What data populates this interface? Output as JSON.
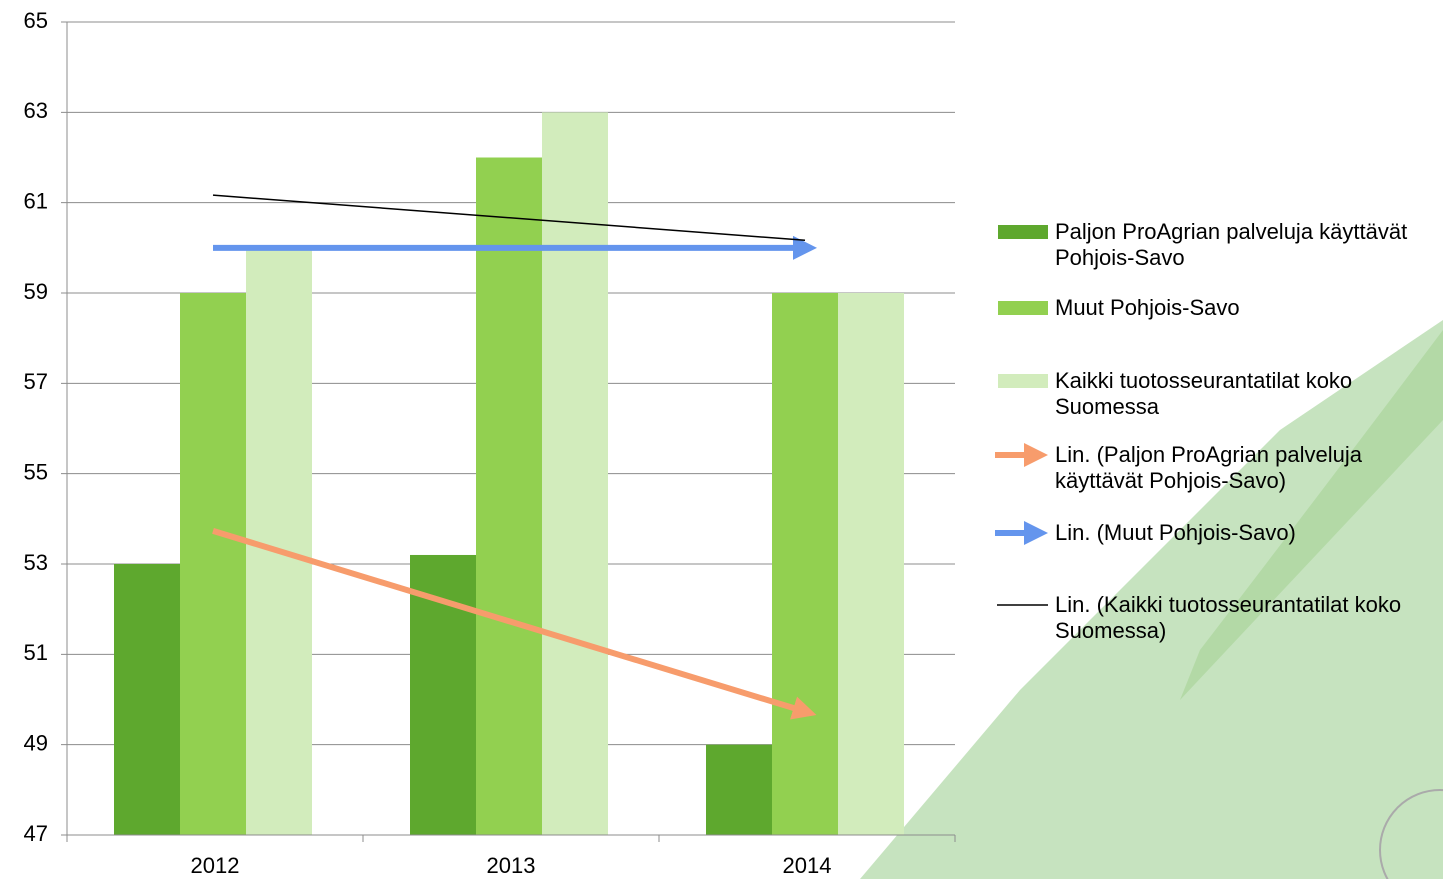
{
  "chart_data": {
    "type": "bar",
    "categories": [
      "2012",
      "2013",
      "2014"
    ],
    "series": [
      {
        "name": "Paljon ProAgrian palveluja käyttävät Pohjois-Savo",
        "color": "#5ea82e",
        "values": [
          53,
          53.2,
          49
        ]
      },
      {
        "name": "Muut Pohjois-Savo",
        "color": "#92d050",
        "values": [
          59,
          62,
          59
        ]
      },
      {
        "name": "Kaikki tuotosseurantatilat koko Suomessa",
        "color": "#d2ecbc",
        "values": [
          60,
          63,
          59
        ]
      }
    ],
    "trendlines": [
      {
        "name": "Lin. (Paljon ProAgrian palveluja käyttävät Pohjois-Savo)",
        "color": "#f79c6c",
        "series": 0
      },
      {
        "name": "Lin. (Muut Pohjois-Savo)",
        "color": "#6495ed",
        "series": 1
      },
      {
        "name": "Lin. (Kaikki tuotosseurantatilat koko Suomessa)",
        "color": "#000000",
        "series": 2
      }
    ],
    "ylim": [
      47,
      65
    ],
    "yticks": [
      47,
      49,
      51,
      53,
      55,
      57,
      59,
      61,
      63,
      65
    ],
    "grid": true,
    "legend": "right"
  }
}
